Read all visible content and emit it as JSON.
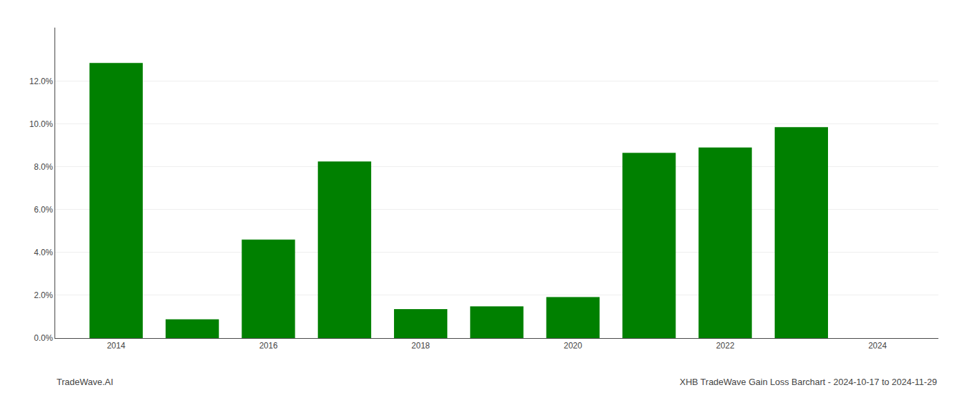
{
  "chart_data": {
    "type": "bar",
    "x": [
      2014,
      2015,
      2016,
      2017,
      2018,
      2019,
      2020,
      2021,
      2022,
      2023
    ],
    "values": [
      0.1285,
      0.0088,
      0.046,
      0.0825,
      0.0135,
      0.0148,
      0.0192,
      0.0865,
      0.089,
      0.0985
    ],
    "color": "#008000",
    "xlim": [
      2013.2,
      2024.8
    ],
    "xticks": [
      2014,
      2016,
      2018,
      2020,
      2022,
      2024
    ],
    "ylim": [
      0,
      0.145
    ],
    "yticks": [
      {
        "value": 0.0,
        "label": "0.0%"
      },
      {
        "value": 0.02,
        "label": "2.0%"
      },
      {
        "value": 0.04,
        "label": "4.0%"
      },
      {
        "value": 0.06,
        "label": "6.0%"
      },
      {
        "value": 0.08,
        "label": "8.0%"
      },
      {
        "value": 0.1,
        "label": "10.0%"
      },
      {
        "value": 0.12,
        "label": "12.0%"
      }
    ],
    "grid": true,
    "annotations": [
      "TradeWave.AI",
      "XHB TradeWave Gain Loss Barchart - 2024-10-17 to 2024-11-29"
    ]
  }
}
